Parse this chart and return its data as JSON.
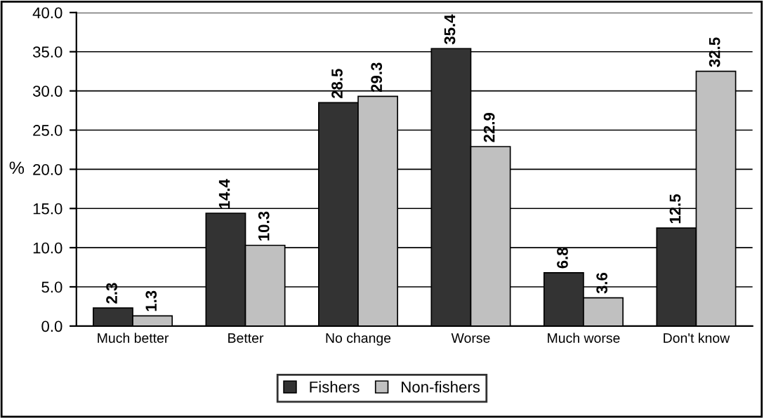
{
  "chart_data": {
    "type": "bar",
    "ylabel": "%",
    "categories": [
      "Much better",
      "Better",
      "No change",
      "Worse",
      "Much worse",
      "Don't know"
    ],
    "series": [
      {
        "name": "Fishers",
        "color": "#333333",
        "values": [
          2.3,
          14.4,
          28.5,
          35.4,
          6.8,
          12.5
        ]
      },
      {
        "name": "Non-fishers",
        "color": "#c0c0c0",
        "values": [
          1.3,
          10.3,
          29.3,
          22.9,
          3.6,
          32.5
        ]
      }
    ],
    "ylim": [
      0,
      40
    ],
    "yticks": [
      {
        "value": 0,
        "label": "0.0"
      },
      {
        "value": 5,
        "label": "5.0"
      },
      {
        "value": 10,
        "label": "10.0"
      },
      {
        "value": 15,
        "label": "15.0"
      },
      {
        "value": 20,
        "label": "20.0"
      },
      {
        "value": 25,
        "label": "25.0"
      },
      {
        "value": 30,
        "label": "30.0"
      },
      {
        "value": 35,
        "label": "35.0"
      },
      {
        "value": 40,
        "label": "40.0"
      }
    ],
    "grid": "y",
    "legend": "bottom",
    "data_labels": true
  }
}
